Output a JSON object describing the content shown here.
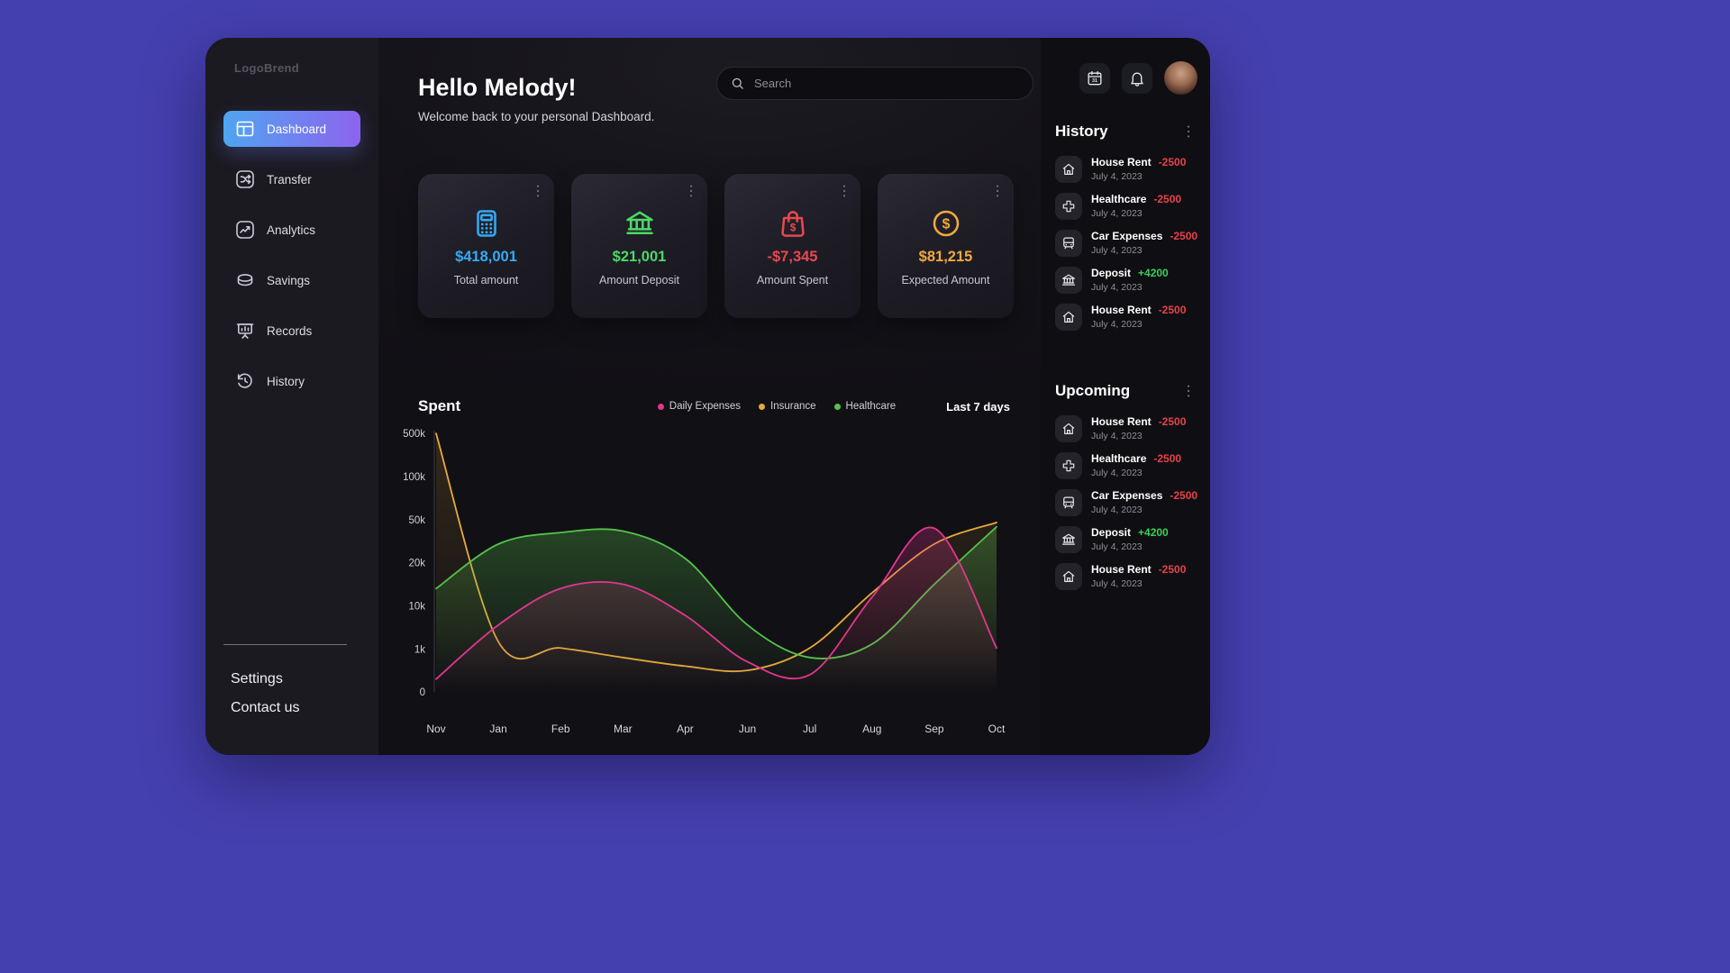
{
  "sidebar": {
    "logo": "LogoBrend",
    "items": [
      {
        "label": "Dashboard",
        "icon": "dashboard-icon",
        "active": true
      },
      {
        "label": "Transfer",
        "icon": "transfer-icon",
        "active": false
      },
      {
        "label": "Analytics",
        "icon": "analytics-icon",
        "active": false
      },
      {
        "label": "Savings",
        "icon": "savings-icon",
        "active": false
      },
      {
        "label": "Records",
        "icon": "records-icon",
        "active": false
      },
      {
        "label": "History",
        "icon": "history-icon",
        "active": false
      }
    ],
    "footer_links": [
      {
        "label": "Settings"
      },
      {
        "label": "Contact us"
      }
    ]
  },
  "header": {
    "title": "Hello Melody!",
    "subtitle": "Welcome back to your personal Dashboard.",
    "search_placeholder": "Search"
  },
  "topbar_icons": [
    "calendar-icon",
    "bell-icon",
    "user-avatar"
  ],
  "cards": [
    {
      "value": "$418,001",
      "label": "Total amount",
      "color": "#36aaf2",
      "icon": "calculator-icon"
    },
    {
      "value": "$21,001",
      "label": "Amount Deposit",
      "color": "#4cd964",
      "icon": "bank-icon"
    },
    {
      "value": "-$7,345",
      "label": "Amount Spent",
      "color": "#e8484f",
      "icon": "shopping-bag-icon"
    },
    {
      "value": "$81,215",
      "label": "Expected Amount",
      "color": "#f2a93b",
      "icon": "dollar-coin-icon"
    }
  ],
  "chart": {
    "title": "Spent",
    "range_label": "Last 7 days"
  },
  "chart_data": {
    "type": "area",
    "title": "Spent",
    "x": [
      "Nov",
      "Jan",
      "Feb",
      "Mar",
      "Apr",
      "Jun",
      "Jul",
      "Aug",
      "Sep",
      "Oct"
    ],
    "y_ticks": [
      0,
      1,
      10,
      20,
      50,
      100,
      500
    ],
    "y_tick_labels": [
      "0",
      "1k",
      "10k",
      "20k",
      "50k",
      "100k",
      "500k"
    ],
    "unit": "thousands",
    "y_scale": "non-linear, ticks equally spaced",
    "grid": false,
    "legend_position": "top",
    "series": [
      {
        "name": "Daily Expenses",
        "color": "#e0368e",
        "fill_opacity": 0.28,
        "values": [
          0.3,
          6,
          14,
          15,
          8,
          0.7,
          0.4,
          12,
          44,
          1.2
        ]
      },
      {
        "name": "Insurance",
        "color": "#e8a93a",
        "fill_opacity": 0.16,
        "values": [
          500,
          2.5,
          1.2,
          0.8,
          0.6,
          0.5,
          1.2,
          13,
          33,
          48
        ]
      },
      {
        "name": "Healthcare",
        "color": "#54c34a",
        "fill_opacity": 0.3,
        "values": [
          14,
          33,
          41,
          42,
          23,
          6,
          0.8,
          2,
          15,
          45
        ]
      }
    ],
    "draw_order": [
      1,
      2,
      0
    ]
  },
  "history": {
    "title": "History",
    "items": [
      {
        "name": "House Rent",
        "amount": "-2500",
        "date": "July 4, 2023",
        "icon": "house-icon",
        "direction": "negative"
      },
      {
        "name": "Healthcare",
        "amount": "-2500",
        "date": "July 4, 2023",
        "icon": "healthcare-icon",
        "direction": "negative"
      },
      {
        "name": "Car Expenses",
        "amount": "-2500",
        "date": "July 4, 2023",
        "icon": "car-icon",
        "direction": "negative"
      },
      {
        "name": "Deposit",
        "amount": "+4200",
        "date": "July 4, 2023",
        "icon": "bank-icon",
        "direction": "positive"
      },
      {
        "name": "House Rent",
        "amount": "-2500",
        "date": "July 4, 2023",
        "icon": "house-icon",
        "direction": "negative"
      }
    ]
  },
  "upcoming": {
    "title": "Upcoming",
    "items": [
      {
        "name": "House Rent",
        "amount": "-2500",
        "date": "July 4, 2023",
        "icon": "house-icon",
        "direction": "negative"
      },
      {
        "name": "Healthcare",
        "amount": "-2500",
        "date": "July 4, 2023",
        "icon": "healthcare-icon",
        "direction": "negative"
      },
      {
        "name": "Car Expenses",
        "amount": "-2500",
        "date": "July 4, 2023",
        "icon": "car-icon",
        "direction": "negative"
      },
      {
        "name": "Deposit",
        "amount": "+4200",
        "date": "July 4, 2023",
        "icon": "bank-icon",
        "direction": "positive"
      },
      {
        "name": "House Rent",
        "amount": "-2500",
        "date": "July 4, 2023",
        "icon": "house-icon",
        "direction": "negative"
      }
    ]
  }
}
